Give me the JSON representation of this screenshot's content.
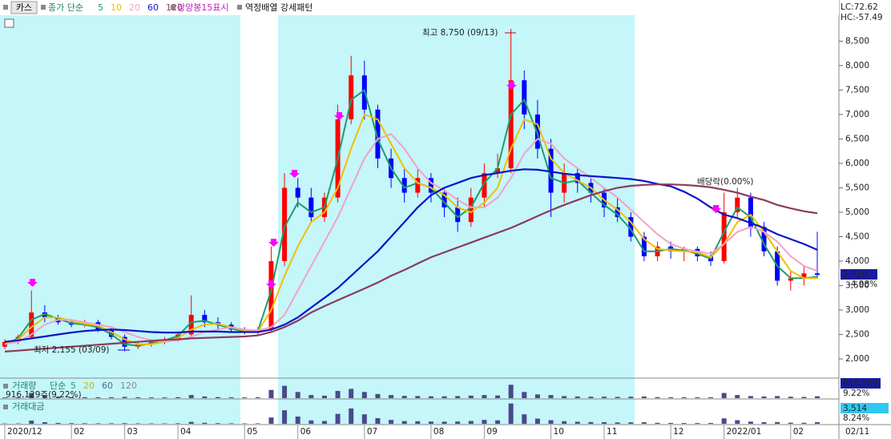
{
  "toolbar": {
    "stock": "카스",
    "indicator": "종가 단순",
    "signal_label": "강양봉15표시",
    "pattern_label": "역정배열 강세패턴",
    "lc": "LC:72.62",
    "hc": "HC:-57.49"
  },
  "chart_data": [
    {
      "type": "candlestick",
      "categories": [
        "2020/12",
        null,
        null,
        null,
        null,
        "02",
        null,
        null,
        null,
        "03",
        null,
        null,
        null,
        "04",
        null,
        null,
        null,
        null,
        "05",
        null,
        null,
        null,
        "06",
        null,
        null,
        null,
        null,
        "07",
        null,
        null,
        null,
        null,
        "08",
        null,
        null,
        null,
        "09",
        null,
        null,
        null,
        null,
        "10",
        null,
        null,
        null,
        "11",
        null,
        null,
        null,
        null,
        "12",
        null,
        null,
        null,
        "2022/01",
        null,
        null,
        null,
        null,
        "02",
        null,
        "02/11"
      ],
      "open": [
        2250,
        2350,
        2450,
        2950,
        2850,
        2750,
        2700,
        2750,
        2600,
        2450,
        2250,
        2300,
        2350,
        2400,
        2500,
        2900,
        2750,
        2700,
        2600,
        2550,
        2600,
        4000,
        5500,
        5300,
        4900,
        5300,
        6900,
        7800,
        7100,
        6100,
        5700,
        5400,
        5700,
        5400,
        5100,
        4800,
        5300,
        5800,
        5900,
        7700,
        7000,
        6300,
        5400,
        5800,
        5600,
        5400,
        5100,
        4900,
        4500,
        4100,
        4300,
        4200,
        4250,
        4100,
        4000,
        5000,
        5300,
        4700,
        4200,
        3600,
        3650,
        3750
      ],
      "high": [
        2400,
        2500,
        3400,
        3100,
        2900,
        2800,
        2800,
        2800,
        2650,
        2500,
        2350,
        2400,
        2450,
        2550,
        3300,
        3000,
        2850,
        2750,
        2650,
        2650,
        4300,
        5800,
        5700,
        5500,
        5400,
        7200,
        8200,
        8100,
        7200,
        6300,
        5900,
        5900,
        5800,
        5500,
        5300,
        5500,
        6000,
        6200,
        8750,
        7900,
        7300,
        6500,
        6000,
        5900,
        5700,
        5500,
        5300,
        5000,
        4600,
        4400,
        4400,
        4300,
        4300,
        4200,
        5400,
        5500,
        5400,
        4800,
        4300,
        3800,
        3900,
        4600
      ],
      "low": [
        2200,
        2300,
        2400,
        2750,
        2700,
        2650,
        2650,
        2550,
        2400,
        2155,
        2200,
        2250,
        2300,
        2350,
        2450,
        2650,
        2600,
        2550,
        2500,
        2500,
        2550,
        3900,
        5100,
        4800,
        4800,
        5200,
        6800,
        6900,
        5900,
        5500,
        5200,
        5300,
        5200,
        4900,
        4600,
        4700,
        5100,
        5700,
        5800,
        6700,
        6100,
        4900,
        5200,
        5400,
        5200,
        4900,
        4800,
        4400,
        4000,
        4000,
        4050,
        4000,
        4000,
        3900,
        3950,
        4900,
        4500,
        4100,
        3500,
        3400,
        3500,
        3650
      ],
      "close": [
        2350,
        2450,
        2950,
        2850,
        2750,
        2700,
        2750,
        2600,
        2450,
        2250,
        2300,
        2350,
        2400,
        2500,
        2900,
        2750,
        2700,
        2600,
        2550,
        2600,
        4000,
        5500,
        5300,
        4900,
        5300,
        6900,
        7800,
        7100,
        6100,
        5700,
        5400,
        5700,
        5400,
        5100,
        4800,
        5300,
        5800,
        5900,
        7700,
        7000,
        6300,
        5400,
        5800,
        5600,
        5400,
        5100,
        4900,
        4500,
        4100,
        4300,
        4200,
        4250,
        4100,
        4000,
        5000,
        5300,
        4700,
        4200,
        3600,
        3650,
        3750,
        3720
      ],
      "up_color": "#ff0000",
      "down_color": "#0000ff",
      "series": [
        {
          "name": "5",
          "color": "#1f9d6a",
          "values": [
            2300,
            2420,
            2800,
            2920,
            2820,
            2730,
            2700,
            2650,
            2500,
            2300,
            2270,
            2320,
            2380,
            2470,
            2750,
            2780,
            2700,
            2620,
            2560,
            2570,
            3400,
            4700,
            5200,
            5000,
            5100,
            6100,
            7300,
            7500,
            6500,
            5900,
            5500,
            5600,
            5500,
            5200,
            4900,
            5100,
            5600,
            5900,
            7000,
            7300,
            6600,
            5700,
            5600,
            5650,
            5400,
            5150,
            4950,
            4650,
            4200,
            4200,
            4250,
            4220,
            4150,
            4050,
            4600,
            5100,
            4900,
            4350,
            3900,
            3650,
            3650,
            3680
          ]
        },
        {
          "name": "10",
          "color": "#f0c000",
          "values": [
            2300,
            2400,
            2650,
            2850,
            2850,
            2780,
            2720,
            2680,
            2550,
            2400,
            2300,
            2300,
            2350,
            2430,
            2600,
            2700,
            2720,
            2650,
            2580,
            2560,
            3000,
            3700,
            4300,
            4800,
            5000,
            5500,
            6300,
            7000,
            6900,
            6400,
            5900,
            5600,
            5500,
            5350,
            5100,
            5000,
            5200,
            5500,
            6300,
            6900,
            6800,
            6100,
            5800,
            5650,
            5500,
            5250,
            5050,
            4800,
            4450,
            4250,
            4220,
            4200,
            4180,
            4080,
            4350,
            4800,
            4950,
            4600,
            4200,
            3800,
            3650,
            3650
          ]
        },
        {
          "name": "20",
          "color": "#f4a0c8",
          "values": [
            2300,
            2350,
            2500,
            2700,
            2800,
            2800,
            2750,
            2700,
            2650,
            2550,
            2450,
            2380,
            2350,
            2380,
            2450,
            2550,
            2600,
            2650,
            2600,
            2580,
            2650,
            2900,
            3400,
            3900,
            4400,
            4900,
            5500,
            6100,
            6500,
            6600,
            6300,
            5900,
            5600,
            5450,
            5250,
            5100,
            5100,
            5300,
            5700,
            6200,
            6500,
            6400,
            6100,
            5900,
            5700,
            5500,
            5300,
            5050,
            4800,
            4550,
            4350,
            4250,
            4200,
            4150,
            4350,
            4600,
            4700,
            4600,
            4400,
            4100,
            3900,
            3800
          ]
        },
        {
          "name": "60",
          "color": "#0a14c8",
          "values": [
            2350,
            2380,
            2420,
            2460,
            2500,
            2540,
            2570,
            2590,
            2600,
            2590,
            2570,
            2550,
            2540,
            2540,
            2560,
            2560,
            2560,
            2550,
            2550,
            2550,
            2600,
            2700,
            2850,
            3050,
            3250,
            3450,
            3700,
            3950,
            4200,
            4500,
            4800,
            5100,
            5350,
            5500,
            5600,
            5700,
            5760,
            5800,
            5850,
            5880,
            5870,
            5830,
            5790,
            5760,
            5740,
            5720,
            5700,
            5680,
            5640,
            5580,
            5530,
            5420,
            5280,
            5100,
            4950,
            4880,
            4780,
            4680,
            4550,
            4450,
            4350,
            4230
          ]
        },
        {
          "name": "120",
          "color": "#8b3a5e",
          "values": [
            2150,
            2170,
            2190,
            2210,
            2230,
            2250,
            2270,
            2290,
            2310,
            2330,
            2350,
            2370,
            2390,
            2400,
            2420,
            2430,
            2440,
            2450,
            2460,
            2480,
            2550,
            2650,
            2780,
            2950,
            3080,
            3200,
            3320,
            3440,
            3560,
            3700,
            3820,
            3950,
            4080,
            4180,
            4280,
            4380,
            4480,
            4580,
            4680,
            4800,
            4920,
            5040,
            5150,
            5250,
            5350,
            5430,
            5500,
            5540,
            5560,
            5570,
            5570,
            5560,
            5540,
            5510,
            5460,
            5400,
            5320,
            5250,
            5150,
            5080,
            5020,
            4980
          ]
        }
      ],
      "ylim": [
        1640,
        9260
      ],
      "yticks": [
        {
          "value": 2000,
          "label": "2,000"
        },
        {
          "value": 2500,
          "label": "2,500"
        },
        {
          "value": 3000,
          "label": "3,000"
        },
        {
          "value": 3500,
          "label": "3,500"
        },
        {
          "value": 4000,
          "label": "4,000"
        },
        {
          "value": 4500,
          "label": "4,500"
        },
        {
          "value": 5000,
          "label": "5,000"
        },
        {
          "value": 5500,
          "label": "5,500"
        },
        {
          "value": 6000,
          "label": "6,000"
        },
        {
          "value": 6500,
          "label": "6,500"
        },
        {
          "value": 7000,
          "label": "7,000"
        },
        {
          "value": 7500,
          "label": "7,500"
        },
        {
          "value": 8000,
          "label": "8,000"
        },
        {
          "value": 8500,
          "label": "8,500"
        }
      ],
      "high_label": "최고 8,750 (09/13)",
      "low_label": "최저 2,155 (03/09)",
      "dividend_label": "배당락(0.00%)",
      "last": {
        "value": 3720,
        "label": "3,720"
      },
      "change": {
        "value": -4.98,
        "label": "-4.98%"
      }
    },
    {
      "type": "bar",
      "title": "거래량",
      "indicator": "단순",
      "ma_legend": [
        {
          "name": "5",
          "color": "#1f9d6a"
        },
        {
          "name": "20",
          "color": "#c8b400"
        },
        {
          "name": "60",
          "color": "#4a6a9a"
        },
        {
          "name": "120",
          "color": "#888888"
        }
      ],
      "note": "916,129주(9.22%)",
      "color": "#4a4a8a",
      "values": [
        300000,
        350000,
        2500000,
        1200000,
        700000,
        500000,
        450000,
        400000,
        450000,
        600000,
        400000,
        350000,
        350000,
        450000,
        1500000,
        800000,
        500000,
        400000,
        350000,
        400000,
        4000000,
        6000000,
        3000000,
        1500000,
        1200000,
        3500000,
        4500000,
        3000000,
        2000000,
        1500000,
        1100000,
        1000000,
        900000,
        900000,
        1000000,
        1200000,
        1500000,
        1300000,
        6500000,
        3000000,
        1800000,
        1500000,
        1000000,
        800000,
        700000,
        700000,
        600000,
        700000,
        800000,
        500000,
        450000,
        400000,
        400000,
        450000,
        2500000,
        1500000,
        1000000,
        800000,
        1000000,
        700000,
        600000,
        916129
      ],
      "ylim": [
        0,
        7000000
      ],
      "last": {
        "value": 916129,
        "label": "916,129"
      },
      "change": {
        "value": 9.22,
        "label": "9.22%"
      }
    },
    {
      "type": "bar",
      "title": "거래대금",
      "color": "#4a4a8a",
      "values": [
        700,
        800,
        7000,
        3500,
        1900,
        1350,
        1200,
        1050,
        1100,
        1400,
        900,
        800,
        830,
        1100,
        4300,
        2200,
        1350,
        1050,
        900,
        1000,
        14000,
        30000,
        16000,
        7500,
        6200,
        22000,
        34000,
        21000,
        12500,
        8600,
        6000,
        5600,
        4900,
        4700,
        4900,
        6200,
        8600,
        7600,
        45000,
        21000,
        11500,
        8000,
        5800,
        4500,
        3800,
        3600,
        3000,
        3200,
        3300,
        2100,
        1900,
        1700,
        1650,
        1800,
        12000,
        7900,
        4800,
        3500,
        3800,
        2500,
        2200,
        3514
      ],
      "ylim": [
        0,
        48000
      ],
      "last": {
        "value": 3514,
        "label": "3,514"
      },
      "change": {
        "value": 8.24,
        "label": "8.24%"
      }
    }
  ]
}
